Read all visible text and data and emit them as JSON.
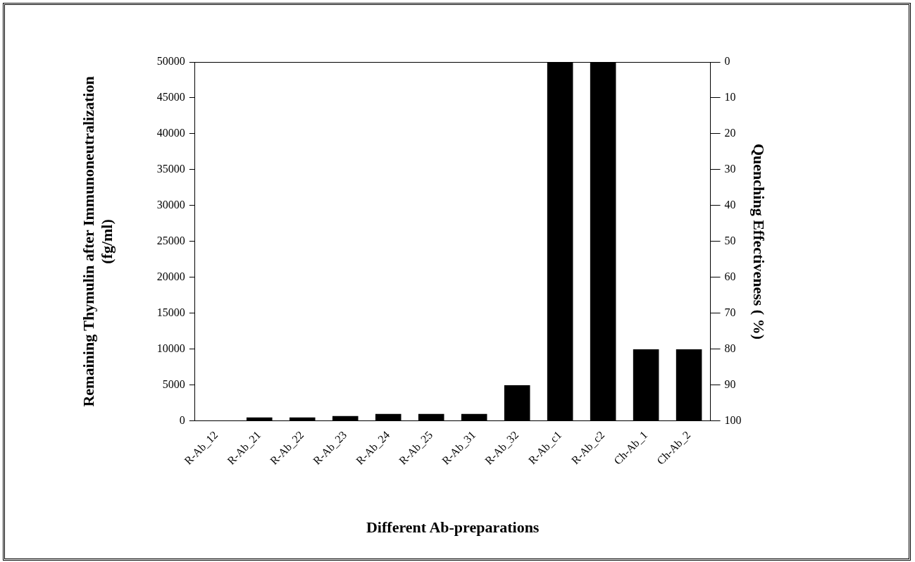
{
  "chart_data": {
    "type": "bar",
    "xlabel": "Different Ab-preparations",
    "ylabel": "Remaining Thymulin after Immunoneutralization\n(fg/ml)",
    "y2label": "Quenching Effectiveness ( %)",
    "categories": [
      "R-Ab_12",
      "R-Ab_21",
      "R-Ab_22",
      "R-Ab_23",
      "R-Ab_24",
      "R-Ab_25",
      "R-Ab_31",
      "R-Ab_32",
      "R-Ab_c1",
      "R-Ab_c2",
      "Ch-Ab_1",
      "Ch-Ab_2"
    ],
    "series": [
      {
        "color": "#000000",
        "values": [
          100,
          500,
          500,
          700,
          1000,
          1000,
          1000,
          5000,
          50000,
          50000,
          10000,
          10000
        ]
      }
    ],
    "ylim": [
      0,
      50000
    ],
    "yticks": [
      0,
      5000,
      10000,
      15000,
      20000,
      25000,
      30000,
      35000,
      40000,
      45000,
      50000
    ],
    "y2lim": [
      100,
      0
    ],
    "y2ticks": [
      0,
      10,
      20,
      30,
      40,
      50,
      60,
      70,
      80,
      90,
      100
    ],
    "grid": false,
    "legend": false
  }
}
